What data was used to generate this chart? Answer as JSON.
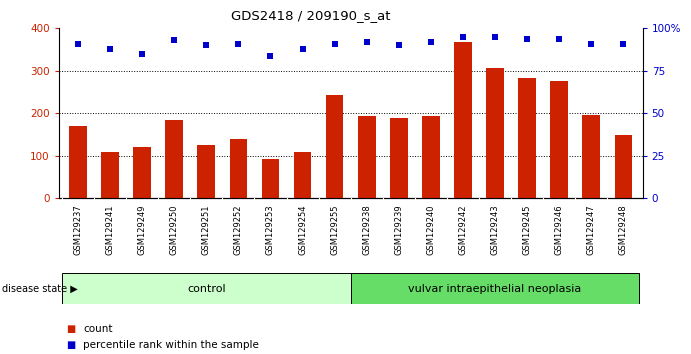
{
  "title": "GDS2418 / 209190_s_at",
  "categories": [
    "GSM129237",
    "GSM129241",
    "GSM129249",
    "GSM129250",
    "GSM129251",
    "GSM129252",
    "GSM129253",
    "GSM129254",
    "GSM129255",
    "GSM129238",
    "GSM129239",
    "GSM129240",
    "GSM129242",
    "GSM129243",
    "GSM129245",
    "GSM129246",
    "GSM129247",
    "GSM129248"
  ],
  "bar_values": [
    170,
    108,
    120,
    185,
    125,
    140,
    92,
    108,
    242,
    193,
    188,
    193,
    368,
    307,
    282,
    277,
    197,
    148
  ],
  "percentile_values": [
    91,
    88,
    85,
    93,
    90,
    91,
    84,
    88,
    91,
    92,
    90,
    92,
    95,
    95,
    94,
    94,
    91,
    91
  ],
  "bar_color": "#cc2200",
  "dot_color": "#0000cc",
  "left_ylim": [
    0,
    400
  ],
  "right_ylim": [
    0,
    100
  ],
  "left_yticks": [
    0,
    100,
    200,
    300,
    400
  ],
  "right_yticks": [
    0,
    25,
    50,
    75,
    100
  ],
  "right_yticklabels": [
    "0",
    "25",
    "50",
    "75",
    "100%"
  ],
  "grid_values": [
    100,
    200,
    300
  ],
  "control_count": 9,
  "disease_label": "disease state",
  "control_label": "control",
  "neoplasia_label": "vulvar intraepithelial neoplasia",
  "legend_count": "count",
  "legend_percentile": "percentile rank within the sample",
  "control_color": "#ccffcc",
  "neoplasia_color": "#66dd66",
  "tick_area_color": "#d8d8d8"
}
